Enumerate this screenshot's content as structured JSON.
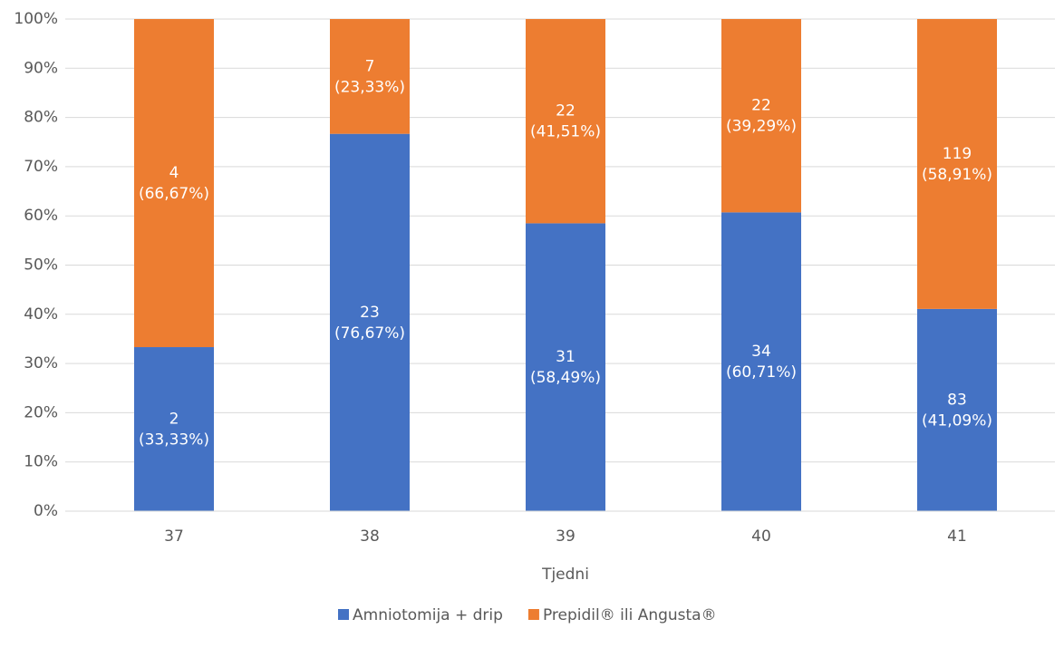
{
  "chart_data": {
    "type": "stacked-bar-percent",
    "x_label": "Tjedni",
    "categories": [
      "37",
      "38",
      "39",
      "40",
      "41"
    ],
    "series": [
      {
        "name": "Amniotomija + drip",
        "color": "#4472c4",
        "values": [
          33.33,
          76.67,
          58.49,
          60.71,
          41.09
        ],
        "counts": [
          2,
          23,
          31,
          34,
          83
        ],
        "value_labels": [
          "(33,33%)",
          "(76,67%)",
          "(58,49%)",
          "(60,71%)",
          "(41,09%)"
        ]
      },
      {
        "name": "Prepidil® ili Angusta®",
        "color": "#ed7d31",
        "values": [
          66.67,
          23.33,
          41.51,
          39.29,
          58.91
        ],
        "counts": [
          4,
          7,
          22,
          22,
          119
        ],
        "value_labels": [
          "(66,67%)",
          "(23,33%)",
          "(41,51%)",
          "(39,29%)",
          "(58,91%)"
        ]
      }
    ],
    "ylim": [
      0,
      100
    ],
    "yticks": [
      {
        "value": 0,
        "label": "0%"
      },
      {
        "value": 10,
        "label": "10%"
      },
      {
        "value": 20,
        "label": "20%"
      },
      {
        "value": 30,
        "label": "30%"
      },
      {
        "value": 40,
        "label": "40%"
      },
      {
        "value": 50,
        "label": "50%"
      },
      {
        "value": 60,
        "label": "60%"
      },
      {
        "value": 70,
        "label": "70%"
      },
      {
        "value": 80,
        "label": "80%"
      },
      {
        "value": 90,
        "label": "90%"
      },
      {
        "value": 100,
        "label": "100%"
      }
    ],
    "grid": true
  }
}
